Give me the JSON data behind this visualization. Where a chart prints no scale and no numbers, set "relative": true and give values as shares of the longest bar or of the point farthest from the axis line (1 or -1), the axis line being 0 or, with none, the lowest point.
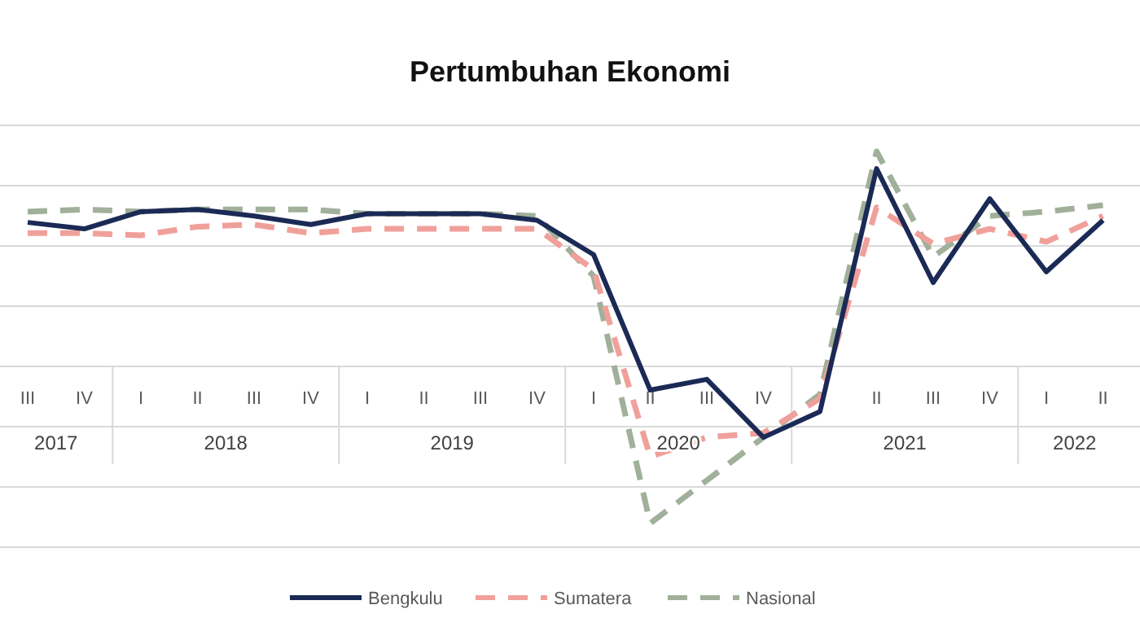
{
  "chart_data": {
    "type": "line",
    "title": "Pertumbuhan Ekonomi",
    "relative": true,
    "grid": "y",
    "legend": "bottom",
    "categories": [
      "III",
      "IV",
      "I",
      "II",
      "III",
      "IV",
      "I",
      "II",
      "III",
      "IV",
      "I",
      "II",
      "III",
      "IV",
      null,
      "II",
      "III",
      "IV",
      "I",
      "II"
    ],
    "annotations": [
      "2017",
      "2018",
      "2019",
      "2020",
      "2021",
      "2022"
    ],
    "series": [
      {
        "name": "Bengkulu",
        "color": "#1b2a55",
        "line_style": "solid",
        "values": [
          0.67,
          0.64,
          0.72,
          0.73,
          0.7,
          0.66,
          0.71,
          0.71,
          0.71,
          0.68,
          0.52,
          -0.11,
          -0.06,
          -0.33,
          -0.21,
          0.92,
          0.39,
          0.78,
          0.44,
          0.68
        ]
      },
      {
        "name": "Sumatera",
        "color": "#f0a09a",
        "line_style": "dashed",
        "values": [
          0.62,
          0.62,
          0.61,
          0.65,
          0.66,
          0.62,
          0.64,
          0.64,
          0.64,
          0.64,
          0.45,
          -0.42,
          -0.33,
          -0.31,
          -0.15,
          0.74,
          0.57,
          0.64,
          0.58,
          0.7
        ]
      },
      {
        "name": "Nasional",
        "color": "#a0b09a",
        "line_style": "dashed",
        "values": [
          0.72,
          0.73,
          0.72,
          0.73,
          0.73,
          0.73,
          0.71,
          0.71,
          0.71,
          0.7,
          0.42,
          -0.73,
          -0.53,
          -0.33,
          -0.13,
          1,
          0.51,
          0.7,
          0.72,
          0.75
        ]
      }
    ]
  }
}
